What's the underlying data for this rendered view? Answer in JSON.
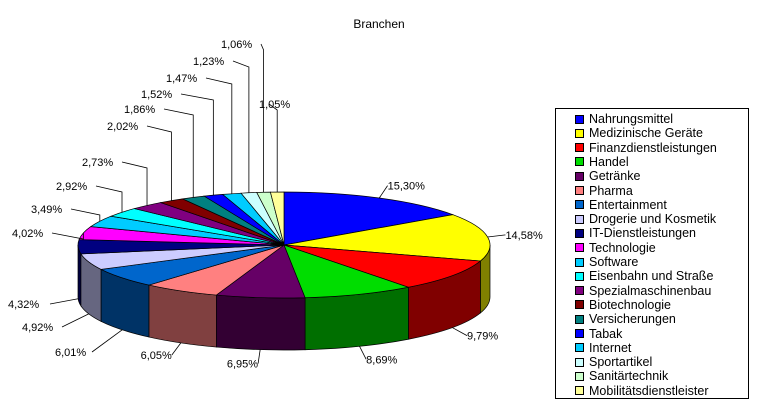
{
  "chart_data": {
    "type": "pie",
    "title": "Branchen",
    "labels": [
      "Nahrungsmittel",
      "Medizinische Geräte",
      "Finanzdienstleistungen",
      "Handel",
      "Getränke",
      "Pharma",
      "Entertainment",
      "Drogerie und Kosmetik",
      "IT-Dienstleistungen",
      "Technologie",
      "Software",
      "Eisenbahn und Straße",
      "Spezialmaschinenbau",
      "Biotechnologie",
      "Versicherungen",
      "Tabak",
      "Internet",
      "Sportartikel",
      "Sanitärtechnik",
      "Mobilitätsdienstleister"
    ],
    "values": [
      15.3,
      14.58,
      9.79,
      8.69,
      6.95,
      6.05,
      6.01,
      4.92,
      4.32,
      4.02,
      3.49,
      2.92,
      2.73,
      2.02,
      1.86,
      1.52,
      1.47,
      1.23,
      1.06,
      1.05
    ],
    "value_labels": [
      "15,30%",
      "14,58%",
      "9,79%",
      "8,69%",
      "6,95%",
      "6,05%",
      "6,01%",
      "4,92%",
      "4,32%",
      "4,02%",
      "3,49%",
      "2,92%",
      "2,73%",
      "2,02%",
      "1,86%",
      "1,52%",
      "1,47%",
      "1,23%",
      "1,06%",
      "1,05%"
    ],
    "colors": [
      "#0000ff",
      "#ffff00",
      "#ff0000",
      "#00dd00",
      "#660066",
      "#ff8080",
      "#0066cc",
      "#ccccff",
      "#000080",
      "#ff00ff",
      "#00ccff",
      "#00ffff",
      "#800080",
      "#800000",
      "#008080",
      "#0000ff",
      "#00ccff",
      "#ccffff",
      "#ccffcc",
      "#ffff99"
    ],
    "legend_position": "right",
    "style": "3d-exploded-pie"
  }
}
